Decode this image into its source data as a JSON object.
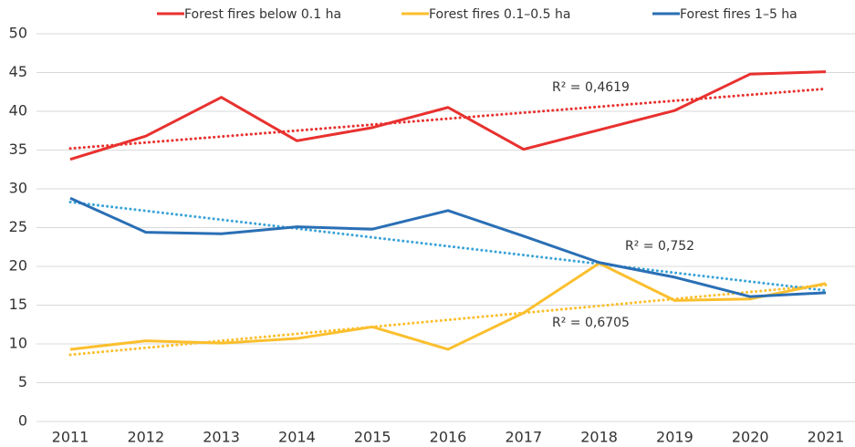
{
  "chart_data": {
    "type": "line",
    "categories": [
      "2011",
      "2012",
      "2013",
      "2014",
      "2015",
      "2016",
      "2017",
      "2018",
      "2019",
      "2020",
      "2021"
    ],
    "series": [
      {
        "name": "Forest fires below 0.1 ha",
        "color": "#e8312f",
        "trend_color": "#e8312f",
        "values": [
          33.8,
          36.8,
          41.8,
          36.2,
          37.9,
          40.5,
          35.1,
          37.6,
          40.1,
          44.8,
          45.1
        ],
        "trend": [
          35.2,
          42.9
        ],
        "r2_label": "R² = 0,4619"
      },
      {
        "name": "Forest fires 0.1–0.5 ha",
        "color": "#fbbf2e",
        "trend_color": "#fbbf2e",
        "values": [
          9.3,
          10.4,
          10.1,
          10.7,
          12.2,
          9.3,
          14.0,
          20.4,
          15.6,
          15.8,
          17.8
        ],
        "trend": [
          8.6,
          17.6
        ],
        "r2_label": "R² = 0,6705"
      },
      {
        "name": "Forest fires 1–5 ha",
        "color": "#2a6fb5",
        "trend_color": "#3aa3d8",
        "values": [
          28.8,
          24.4,
          24.2,
          25.1,
          24.8,
          27.2,
          23.9,
          20.5,
          18.6,
          16.1,
          16.6
        ],
        "trend": [
          28.3,
          16.9
        ],
        "r2_label": "R² = 0,752"
      }
    ],
    "ylim": [
      0,
      50
    ],
    "yticks": [
      0,
      5,
      10,
      15,
      20,
      25,
      30,
      35,
      40,
      45,
      50
    ],
    "grid": true,
    "legend": "top"
  }
}
